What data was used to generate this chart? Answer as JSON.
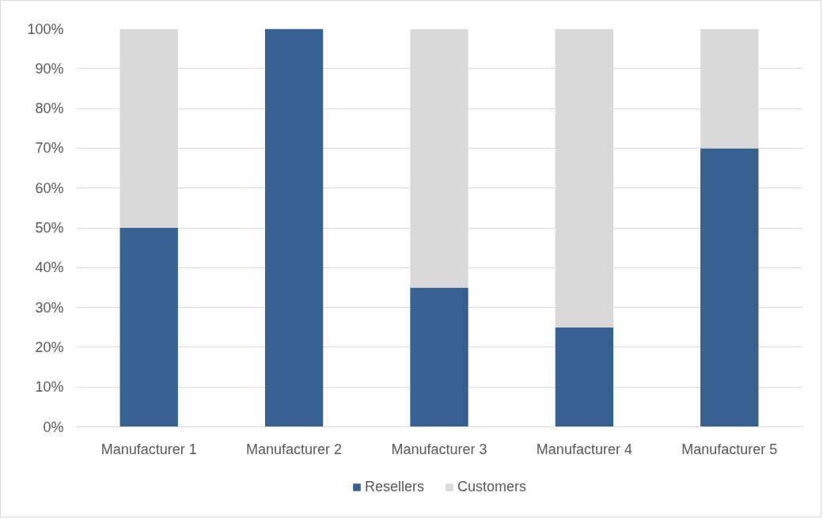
{
  "chart_data": {
    "type": "bar",
    "stacked": true,
    "categories": [
      "Manufacturer 1",
      "Manufacturer 2",
      "Manufacturer 3",
      "Manufacturer 4",
      "Manufacturer 5"
    ],
    "series": [
      {
        "name": "Resellers",
        "color": "#35608f",
        "values": [
          50,
          100,
          35,
          25,
          70
        ]
      },
      {
        "name": "Customers",
        "color": "#d9d9d9",
        "values": [
          50,
          0,
          65,
          75,
          30
        ]
      }
    ],
    "ylim": [
      0,
      100
    ],
    "yticks": [
      {
        "value": 0,
        "label": "0%"
      },
      {
        "value": 10,
        "label": "10%"
      },
      {
        "value": 20,
        "label": "20%"
      },
      {
        "value": 30,
        "label": "30%"
      },
      {
        "value": 40,
        "label": "40%"
      },
      {
        "value": 50,
        "label": "50%"
      },
      {
        "value": 60,
        "label": "60%"
      },
      {
        "value": 70,
        "label": "70%"
      },
      {
        "value": 80,
        "label": "80%"
      },
      {
        "value": 90,
        "label": "90%"
      },
      {
        "value": 100,
        "label": "100%"
      }
    ],
    "grid": "y",
    "legend": "bottom"
  }
}
